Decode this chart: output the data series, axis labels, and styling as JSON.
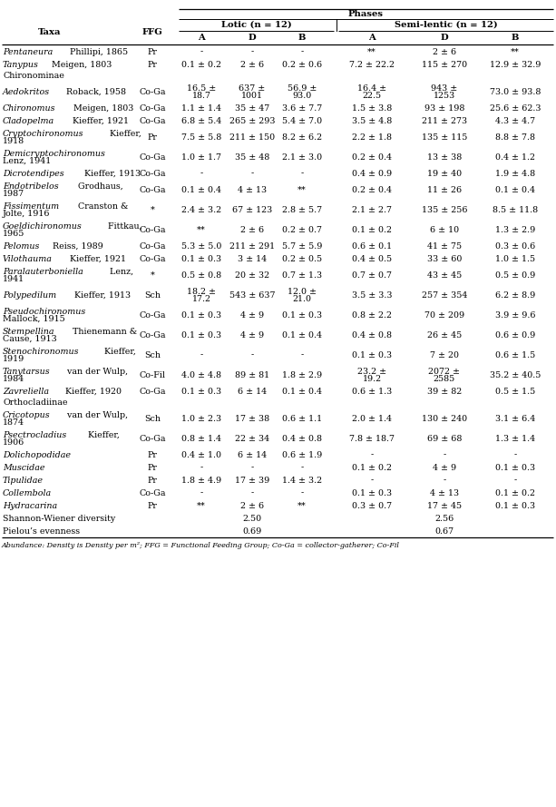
{
  "phases_header": "Phases",
  "lotic_header": "Lotic (n = 12)",
  "semi_lentic_header": "Semi-lentic (n = 12)",
  "rows": [
    {
      "taxa": "Pentaneura",
      "taxa_rest": " Phillipi, 1865",
      "ffg": "Pr",
      "la": "-",
      "ld": "-",
      "lb": "-",
      "sla": "**",
      "sld": "2 ± 6",
      "slb": "**"
    },
    {
      "taxa": "Tanypus",
      "taxa_rest": " Meigen, 1803",
      "ffg": "Pr",
      "la": "0.1 ± 0.2",
      "ld": "2 ± 6",
      "lb": "0.2 ± 0.6",
      "sla": "7.2 ± 22.2",
      "sld": "115 ± 270",
      "slb": "12.9 ± 32.9"
    },
    {
      "taxa": "Chironominae",
      "taxa_rest": "",
      "ffg": "",
      "la": "",
      "ld": "",
      "lb": "",
      "sla": "",
      "sld": "",
      "slb": "",
      "section_header": true
    },
    {
      "taxa": "Aedokritos",
      "taxa_rest": " Roback, 1958",
      "ffg": "Co-Ga",
      "la": "16.5 ±\n18.7",
      "ld": "637 ±\n1001",
      "lb": "56.9 ±\n93.0",
      "sla": "16.4 ±\n22.5",
      "sld": "943 ±\n1253",
      "slb": "73.0 ± 93.8"
    },
    {
      "taxa": "Chironomus",
      "taxa_rest": " Meigen, 1803",
      "ffg": "Co-Ga",
      "la": "1.1 ± 1.4",
      "ld": "35 ± 47",
      "lb": "3.6 ± 7.7",
      "sla": "1.5 ± 3.8",
      "sld": "93 ± 198",
      "slb": "25.6 ± 62.3"
    },
    {
      "taxa": "Cladopelma",
      "taxa_rest": " Kieffer, 1921",
      "ffg": "Co-Ga",
      "la": "6.8 ± 5.4",
      "ld": "265 ± 293",
      "lb": "5.4 ± 7.0",
      "sla": "3.5 ± 4.8",
      "sld": "211 ± 273",
      "slb": "4.3 ± 4.7"
    },
    {
      "taxa": "Cryptochironomus",
      "taxa_rest": " Kieffer,\n1918",
      "ffg": "Pr",
      "la": "7.5 ± 5.8",
      "ld": "211 ± 150",
      "lb": "8.2 ± 6.2",
      "sla": "2.2 ± 1.8",
      "sld": "135 ± 115",
      "slb": "8.8 ± 7.8"
    },
    {
      "taxa": "Demicryptochironomus",
      "taxa_rest": "\nLenz, 1941",
      "ffg": "Co-Ga",
      "la": "1.0 ± 1.7",
      "ld": "35 ± 48",
      "lb": "2.1 ± 3.0",
      "sla": "0.2 ± 0.4",
      "sld": "13 ± 38",
      "slb": "0.4 ± 1.2"
    },
    {
      "taxa": "Dicrotendipes",
      "taxa_rest": " Kieffer, 1913",
      "ffg": "Co-Ga",
      "la": "-",
      "ld": "-",
      "lb": "-",
      "sla": "0.4 ± 0.9",
      "sld": "19 ± 40",
      "slb": "1.9 ± 4.8"
    },
    {
      "taxa": "Endotribelos",
      "taxa_rest": " Grodhaus,\n1987",
      "ffg": "Co-Ga",
      "la": "0.1 ± 0.4",
      "ld": "4 ± 13",
      "lb": "**",
      "sla": "0.2 ± 0.4",
      "sld": "11 ± 26",
      "slb": "0.1 ± 0.4"
    },
    {
      "taxa": "Fissimentum",
      "taxa_rest": " Cranston &\nJolte, 1916",
      "ffg": "*",
      "la": "2.4 ± 3.2",
      "ld": "67 ± 123",
      "lb": "2.8 ± 5.7",
      "sla": "2.1 ± 2.7",
      "sld": "135 ± 256",
      "slb": "8.5 ± 11.8"
    },
    {
      "taxa": "Goeldichironomus",
      "taxa_rest": " Fittkau,\n1965",
      "ffg": "Co-Ga",
      "la": "**",
      "ld": "2 ± 6",
      "lb": "0.2 ± 0.7",
      "sla": "0.1 ± 0.2",
      "sld": "6 ± 10",
      "slb": "1.3 ± 2.9"
    },
    {
      "taxa": "Pelomus",
      "taxa_rest": " Reiss, 1989",
      "ffg": "Co-Ga",
      "la": "5.3 ± 5.0",
      "ld": "211 ± 291",
      "lb": "5.7 ± 5.9",
      "sla": "0.6 ± 0.1",
      "sld": "41 ± 75",
      "slb": "0.3 ± 0.6"
    },
    {
      "taxa": "Vilothauma",
      "taxa_rest": " Kieffer, 1921",
      "ffg": "Co-Ga",
      "la": "0.1 ± 0.3",
      "ld": "3 ± 14",
      "lb": "0.2 ± 0.5",
      "sla": "0.4 ± 0.5",
      "sld": "33 ± 60",
      "slb": "1.0 ± 1.5"
    },
    {
      "taxa": "Paralauterboniella",
      "taxa_rest": " Lenz,\n1941",
      "ffg": "*",
      "la": "0.5 ± 0.8",
      "ld": "20 ± 32",
      "lb": "0.7 ± 1.3",
      "sla": "0.7 ± 0.7",
      "sld": "43 ± 45",
      "slb": "0.5 ± 0.9"
    },
    {
      "taxa": "Polypedilum",
      "taxa_rest": " Kieffer, 1913",
      "ffg": "Sch",
      "la": "18.2 ±\n17.2",
      "ld": "543 ± 637",
      "lb": "12.0 ±\n21.0",
      "sla": "3.5 ± 3.3",
      "sld": "257 ± 354",
      "slb": "6.2 ± 8.9"
    },
    {
      "taxa": "Pseudochironomus",
      "taxa_rest": "\nMallock, 1915",
      "ffg": "Co-Ga",
      "la": "0.1 ± 0.3",
      "ld": "4 ± 9",
      "lb": "0.1 ± 0.3",
      "sla": "0.8 ± 2.2",
      "sld": "70 ± 209",
      "slb": "3.9 ± 9.6"
    },
    {
      "taxa": "Stempellina",
      "taxa_rest": " Thienemann &\nCause, 1913",
      "ffg": "Co-Ga",
      "la": "0.1 ± 0.3",
      "ld": "4 ± 9",
      "lb": "0.1 ± 0.4",
      "sla": "0.4 ± 0.8",
      "sld": "26 ± 45",
      "slb": "0.6 ± 0.9"
    },
    {
      "taxa": "Stenochironomus",
      "taxa_rest": " Kieffer,\n1919",
      "ffg": "Sch",
      "la": "-",
      "ld": "-",
      "lb": "-",
      "sla": "0.1 ± 0.3",
      "sld": "7 ± 20",
      "slb": "0.6 ± 1.5"
    },
    {
      "taxa": "Tanytarsus",
      "taxa_rest": " van der Wulp,\n1984",
      "ffg": "Co-Fil",
      "la": "4.0 ± 4.8",
      "ld": "89 ± 81",
      "lb": "1.8 ± 2.9",
      "sla": "23.2 ±\n19.2",
      "sld": "2072 ±\n2585",
      "slb": "35.2 ± 40.5"
    },
    {
      "taxa": "Zavreliella",
      "taxa_rest": " Kieffer, 1920",
      "ffg": "Co-Ga",
      "la": "0.1 ± 0.3",
      "ld": "6 ± 14",
      "lb": "0.1 ± 0.4",
      "sla": "0.6 ± 1.3",
      "sld": "39 ± 82",
      "slb": "0.5 ± 1.5"
    },
    {
      "taxa": "Orthocladiinae",
      "taxa_rest": "",
      "ffg": "",
      "la": "",
      "ld": "",
      "lb": "",
      "sla": "",
      "sld": "",
      "slb": "",
      "section_header": true
    },
    {
      "taxa": "Cricotopus",
      "taxa_rest": " van der Wulp,\n1874",
      "ffg": "Sch",
      "la": "1.0 ± 2.3",
      "ld": "17 ± 38",
      "lb": "0.6 ± 1.1",
      "sla": "2.0 ± 1.4",
      "sld": "130 ± 240",
      "slb": "3.1 ± 6.4"
    },
    {
      "taxa": "Psectrocladius",
      "taxa_rest": " Kieffer,\n1906",
      "ffg": "Co-Ga",
      "la": "0.8 ± 1.4",
      "ld": "22 ± 34",
      "lb": "0.4 ± 0.8",
      "sla": "7.8 ± 18.7",
      "sld": "69 ± 68",
      "slb": "1.3 ± 1.4"
    },
    {
      "taxa": "Dolichopodidae",
      "taxa_rest": "",
      "ffg": "Pr",
      "la": "0.4 ± 1.0",
      "ld": "6 ± 14",
      "lb": "0.6 ± 1.9",
      "sla": "-",
      "sld": "-",
      "slb": "-"
    },
    {
      "taxa": "Muscidae",
      "taxa_rest": "",
      "ffg": "Pr",
      "la": "-",
      "ld": "-",
      "lb": "-",
      "sla": "0.1 ± 0.2",
      "sld": "4 ± 9",
      "slb": "0.1 ± 0.3"
    },
    {
      "taxa": "Tipulidae",
      "taxa_rest": "",
      "ffg": "Pr",
      "la": "1.8 ± 4.9",
      "ld": "17 ± 39",
      "lb": "1.4 ± 3.2",
      "sla": "-",
      "sld": "-",
      "slb": "-"
    },
    {
      "taxa": "Collembola",
      "taxa_rest": "",
      "ffg": "Co-Ga",
      "la": "-",
      "ld": "-",
      "lb": "-",
      "sla": "0.1 ± 0.3",
      "sld": "4 ± 13",
      "slb": "0.1 ± 0.2"
    },
    {
      "taxa": "Hydracarina",
      "taxa_rest": "",
      "ffg": "Pr",
      "la": "**",
      "ld": "2 ± 6",
      "lb": "**",
      "sla": "0.3 ± 0.7",
      "sld": "17 ± 45",
      "slb": "0.1 ± 0.3"
    },
    {
      "taxa": "Shannon-Wiener diversity",
      "taxa_rest": "",
      "ffg": "",
      "la": "",
      "ld": "2.50",
      "lb": "",
      "sla": "",
      "sld": "2.56",
      "slb": "",
      "summary": true
    },
    {
      "taxa": "Pielou’s evenness",
      "taxa_rest": "",
      "ffg": "",
      "la": "",
      "ld": "0.69",
      "lb": "",
      "sla": "",
      "sld": "0.67",
      "slb": "",
      "summary": true
    }
  ],
  "footnote": "Abundance: Density is Density per m²; FFG = Functional Feeding Group; Co-Ga = collector-gatherer; Co-Fil",
  "bg_color": "#ffffff",
  "text_color": "#000000"
}
